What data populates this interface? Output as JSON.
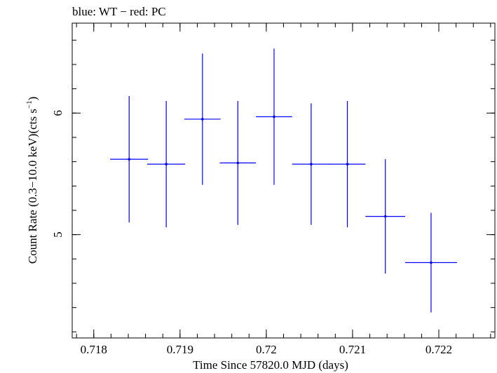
{
  "chart_data": {
    "type": "scatter",
    "title": "blue: WT − red: PC",
    "xlabel": "Time Since 57820.0 MJD (days)",
    "ylabel_main": "Count Rate (0.3−10.0 keV)(cts s",
    "ylabel_sup": "−1",
    "ylabel_close": ")",
    "xlim": [
      0.71775,
      0.72265
    ],
    "ylim": [
      4.15,
      6.74
    ],
    "xticks": [
      {
        "value": 0.718,
        "label": "0.718"
      },
      {
        "value": 0.719,
        "label": "0.719"
      },
      {
        "value": 0.72,
        "label": "0.72"
      },
      {
        "value": 0.721,
        "label": "0.721"
      },
      {
        "value": 0.722,
        "label": "0.722"
      }
    ],
    "x_minor_step": 0.0002,
    "yticks": [
      {
        "value": 5,
        "label": "5"
      },
      {
        "value": 6,
        "label": "6"
      }
    ],
    "y_minor_step": 0.2,
    "grid": false,
    "colors": {
      "WT": "#0000ff",
      "PC": "#ff0000"
    },
    "series": [
      {
        "name": "WT",
        "color": "#0000ff",
        "points": [
          {
            "x": 0.71841,
            "xerr": 0.00022,
            "y": 5.62,
            "yerr": 0.52
          },
          {
            "x": 0.71884,
            "xerr": 0.00022,
            "y": 5.58,
            "yerr": 0.52
          },
          {
            "x": 0.71926,
            "xerr": 0.00021,
            "y": 5.95,
            "yerr": 0.54
          },
          {
            "x": 0.71967,
            "xerr": 0.00021,
            "y": 5.59,
            "yerr": 0.51
          },
          {
            "x": 0.72009,
            "xerr": 0.00021,
            "y": 5.97,
            "yerr": 0.56
          },
          {
            "x": 0.72052,
            "xerr": 0.00022,
            "y": 5.58,
            "yerr": 0.5
          },
          {
            "x": 0.72094,
            "xerr": 0.00021,
            "y": 5.58,
            "yerr": 0.52
          },
          {
            "x": 0.72138,
            "xerr": 0.00023,
            "y": 5.15,
            "yerr": 0.47
          },
          {
            "x": 0.72191,
            "xerr": 0.0003,
            "y": 4.77,
            "yerr": 0.41
          }
        ]
      }
    ]
  }
}
